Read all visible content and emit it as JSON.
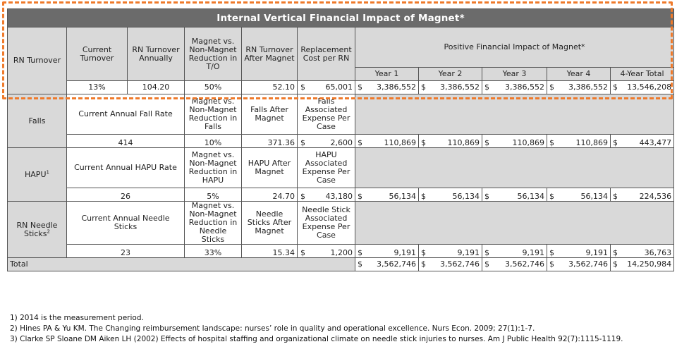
{
  "title": "Internal Vertical Financial Impact of Magnet*",
  "rn": {
    "label": "RN Turnover",
    "headers": [
      "Current Turnover",
      "RN Turnover Annually",
      "Magnet vs. Non-Magnet Reduction in T/O",
      "RN Turnover After Magnet",
      "Replacement Cost per RN"
    ],
    "impact_header": "Positive Financial Impact of Magnet*",
    "years": [
      "Year 1",
      "Year 2",
      "Year 3",
      "Year 4",
      "4-Year Total"
    ],
    "values": [
      "13%",
      "104.20",
      "50%",
      "52.10"
    ],
    "cost": "65,001",
    "impacts": [
      "3,386,552",
      "3,386,552",
      "3,386,552",
      "3,386,552",
      "13,546,208"
    ]
  },
  "falls": {
    "label": "Falls",
    "headers": [
      "Current Annual Fall Rate",
      "Magnet vs. Non-Magnet Reduction in Falls",
      "Falls After Magnet",
      "Falls Associated Expense Per Case"
    ],
    "values": [
      "414",
      "10%",
      "371.36"
    ],
    "cost": "2,600",
    "impacts": [
      "110,869",
      "110,869",
      "110,869",
      "110,869",
      "443,477"
    ]
  },
  "hapu": {
    "label": "HAPU",
    "sup": "1",
    "headers": [
      "Current Annual HAPU Rate",
      "Magnet vs. Non-Magnet Reduction in HAPU",
      "HAPU After Magnet",
      "HAPU Associated Expense Per Case"
    ],
    "values": [
      "26",
      "5%",
      "24.70"
    ],
    "cost": "43,180",
    "impacts": [
      "56,134",
      "56,134",
      "56,134",
      "56,134",
      "224,536"
    ]
  },
  "needle": {
    "label": "RN Needle Sticks",
    "sup": "2",
    "headers": [
      "Current Annual Needle Sticks",
      "Magnet vs. Non-Magnet Reduction in Needle Sticks",
      "Needle Sticks After Magnet",
      "Needle Stick Associated Expense Per Case"
    ],
    "values": [
      "23",
      "33%",
      "15.34"
    ],
    "cost": "1,200",
    "impacts": [
      "9,191",
      "9,191",
      "9,191",
      "9,191",
      "36,763"
    ]
  },
  "total": {
    "label": "Total",
    "impacts": [
      "3,562,746",
      "3,562,746",
      "3,562,746",
      "3,562,746",
      "14,250,984"
    ]
  },
  "currency": "$",
  "notes": [
    "1) 2014 is the measurement period.",
    "2) Hines PA & Yu KM. The Changing reimbursement landscape: nurses’ role in quality and operational excellence. Nurs Econ. 2009; 27(1):1-7.",
    "3) Clarke SP Sloane DM Aiken LH (2002) Effects of hospital staffing and organizational climate on needle stick injuries to nurses. Am J Public Health 92(7):1115-1119."
  ],
  "accent_color": "#ef7a2b"
}
